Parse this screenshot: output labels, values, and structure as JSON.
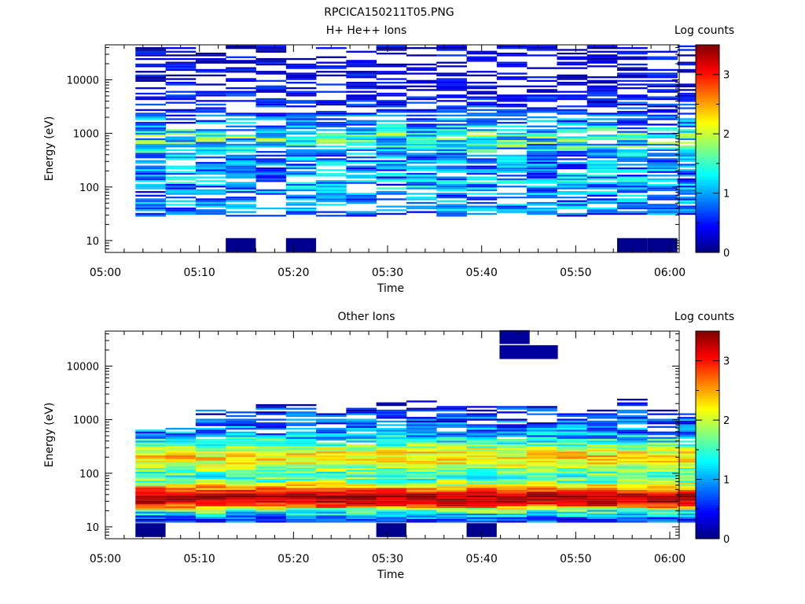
{
  "figure": {
    "title": "RPCICA150211T05.PNG"
  },
  "chart_data": [
    {
      "type": "heatmap",
      "title": "H+ He++ Ions",
      "ylabel": "Energy (eV)",
      "xlabel": "Time",
      "yscale": "log",
      "ylim": [
        6,
        45000
      ],
      "y_ticks": [
        10,
        100,
        1000,
        10000
      ],
      "y_tick_labels": [
        "10",
        "100",
        "1000",
        "10000"
      ],
      "xlim": [
        0,
        61
      ],
      "x_ticks": [
        0,
        10,
        20,
        30,
        40,
        50,
        60
      ],
      "x_tick_labels": [
        "05:00",
        "05:10",
        "05:20",
        "05:30",
        "05:40",
        "05:50",
        "06:00"
      ],
      "colorbar": {
        "label": "Log counts",
        "range": [
          0,
          3.5
        ],
        "ticks": [
          "0",
          "1",
          "2",
          "3"
        ]
      },
      "time_bins": [
        3.2,
        6.4,
        9.6,
        12.8,
        16.0,
        19.2,
        22.4,
        25.6,
        28.8,
        32.0,
        35.2,
        38.4,
        41.6,
        44.8,
        48.0,
        51.2,
        54.4,
        57.6,
        60.8
      ],
      "profile": [
        [
          8,
          0.1,
          0.1,
          0
        ],
        [
          10.5,
          0,
          0,
          0
        ],
        [
          28,
          0.5,
          0.4,
          0.45
        ],
        [
          35,
          0.9,
          0.5,
          0.7
        ],
        [
          45,
          0.9,
          0.4,
          0.6
        ],
        [
          70,
          0.9,
          0.5,
          0.65
        ],
        [
          120,
          1.0,
          0.6,
          0.7
        ],
        [
          200,
          0.9,
          0.55,
          0.8
        ],
        [
          350,
          0.9,
          0.5,
          0.75
        ],
        [
          600,
          1.3,
          0.7,
          0.85
        ],
        [
          900,
          1.5,
          0.75,
          0.85
        ],
        [
          1400,
          1.0,
          0.55,
          0.75
        ],
        [
          2500,
          0.6,
          0.35,
          0.55
        ],
        [
          6000,
          0.4,
          0.3,
          0.5
        ],
        [
          15000,
          0.35,
          0.3,
          0.5
        ],
        [
          40000,
          0.3,
          0.3,
          0.5
        ]
      ],
      "extra_cells": [
        {
          "t": 14.4,
          "e": 9.5,
          "v": 0.05
        },
        {
          "t": 20.8,
          "e": 9.5,
          "v": 0.05
        },
        {
          "t": 56.0,
          "e": 9.5,
          "v": 0.05
        },
        {
          "t": 59.2,
          "e": 9.5,
          "v": 0.05
        }
      ],
      "seed": 17
    },
    {
      "type": "heatmap",
      "title": "Other Ions",
      "ylabel": "Energy (eV)",
      "xlabel": "Time",
      "yscale": "log",
      "ylim": [
        6,
        45000
      ],
      "y_ticks": [
        10,
        100,
        1000,
        10000
      ],
      "y_tick_labels": [
        "10",
        "100",
        "1000",
        "10000"
      ],
      "xlim": [
        0,
        61
      ],
      "x_ticks": [
        0,
        10,
        20,
        30,
        40,
        50,
        60
      ],
      "x_tick_labels": [
        "05:00",
        "05:10",
        "05:20",
        "05:30",
        "05:40",
        "05:50",
        "06:00"
      ],
      "colorbar": {
        "label": "Log counts",
        "range": [
          0,
          3.5
        ],
        "ticks": [
          "0",
          "1",
          "2",
          "3"
        ]
      },
      "time_bins": [
        3.2,
        6.4,
        9.6,
        12.8,
        16.0,
        19.2,
        22.4,
        25.6,
        28.8,
        32.0,
        35.2,
        38.4,
        41.6,
        44.8,
        48.0,
        51.2,
        54.4,
        57.6,
        60.8
      ],
      "profile": [
        [
          14,
          0.6,
          0.5,
          1.0
        ],
        [
          17,
          1.2,
          0.5,
          1.0
        ],
        [
          20,
          1.6,
          0.6,
          1.0
        ],
        [
          25,
          2.9,
          0.45,
          1.0
        ],
        [
          30,
          3.3,
          0.3,
          1.0
        ],
        [
          38,
          3.4,
          0.25,
          1.0
        ],
        [
          45,
          3.0,
          0.35,
          1.0
        ],
        [
          55,
          2.4,
          0.45,
          1.0
        ],
        [
          70,
          1.7,
          0.5,
          1.0
        ],
        [
          90,
          1.5,
          0.5,
          1.0
        ],
        [
          120,
          1.8,
          0.45,
          1.0
        ],
        [
          160,
          2.2,
          0.4,
          1.0
        ],
        [
          200,
          2.3,
          0.4,
          1.0
        ],
        [
          260,
          2.1,
          0.45,
          1.0
        ],
        [
          350,
          1.6,
          0.5,
          0.95
        ],
        [
          450,
          1.2,
          0.5,
          0.9
        ],
        [
          600,
          0.9,
          0.5,
          0.85
        ],
        [
          800,
          0.7,
          0.5,
          0.8
        ],
        [
          1100,
          0.6,
          0.5,
          0.7
        ],
        [
          1500,
          0.5,
          0.45,
          0.6
        ],
        [
          2000,
          0.4,
          0.4,
          0.45
        ]
      ],
      "e_max_by_bin": [
        700,
        700,
        1600,
        1600,
        2000,
        2000,
        1700,
        1700,
        2100,
        2200,
        2000,
        1800,
        1800,
        1800,
        1700,
        1600,
        2400,
        1600,
        1700
      ],
      "extra_cells": [
        {
          "t": 4.8,
          "e": 10,
          "v": 0.05
        },
        {
          "t": 30.4,
          "e": 10,
          "v": 0.05
        },
        {
          "t": 40.0,
          "e": 10,
          "v": 0.05
        },
        {
          "t": 43.5,
          "e": 40000,
          "v": 0.1
        },
        {
          "t": 46.5,
          "e": 21000,
          "v": 0.1
        },
        {
          "t": 43.5,
          "e": 21000,
          "v": 0.1
        }
      ],
      "seed": 91
    }
  ]
}
